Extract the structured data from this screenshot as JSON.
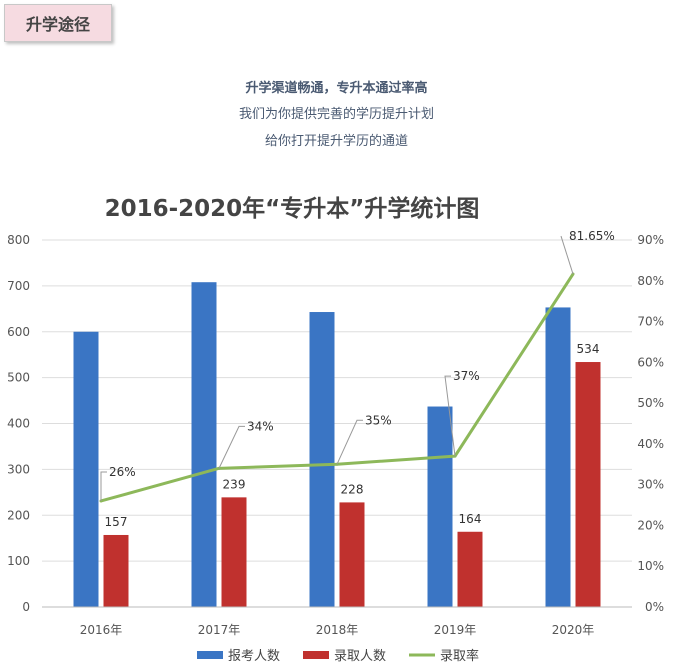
{
  "header": {
    "tag": "升学途径",
    "line1": "升学渠道畅通，专升本通过率高",
    "line2": "我们为你提供完善的学历提升计划",
    "line3": "给你打开提升学历的通道"
  },
  "chart_data": {
    "type": "bar",
    "title": "2016-2020年“专升本”升学统计图",
    "categories": [
      "2016年",
      "2017年",
      "2018年",
      "2019年",
      "2020年"
    ],
    "series": [
      {
        "name": "报考人数",
        "type": "bar",
        "axis": "left",
        "values": [
          600,
          708,
          643,
          437,
          653
        ],
        "color": "#3a75c4"
      },
      {
        "name": "录取人数",
        "type": "bar",
        "axis": "left",
        "values": [
          157,
          239,
          228,
          164,
          534
        ],
        "labels": [
          "157",
          "239",
          "228",
          "164",
          "534"
        ],
        "color": "#c0312e"
      },
      {
        "name": "录取率",
        "type": "line",
        "axis": "right",
        "values": [
          26,
          34,
          35,
          37,
          81.65
        ],
        "labels": [
          "26%",
          "34%",
          "35%",
          "37%",
          "81.65%"
        ],
        "color": "#8db85a"
      }
    ],
    "ylim": [
      0,
      800
    ],
    "yticks": [
      "0",
      "100",
      "200",
      "300",
      "400",
      "500",
      "600",
      "700",
      "800"
    ],
    "y2lim": [
      0,
      90
    ],
    "y2ticks": [
      "0%",
      "10%",
      "20%",
      "30%",
      "40%",
      "50%",
      "60%",
      "70%",
      "80%",
      "90%"
    ],
    "grid": true,
    "legend_position": "bottom"
  }
}
